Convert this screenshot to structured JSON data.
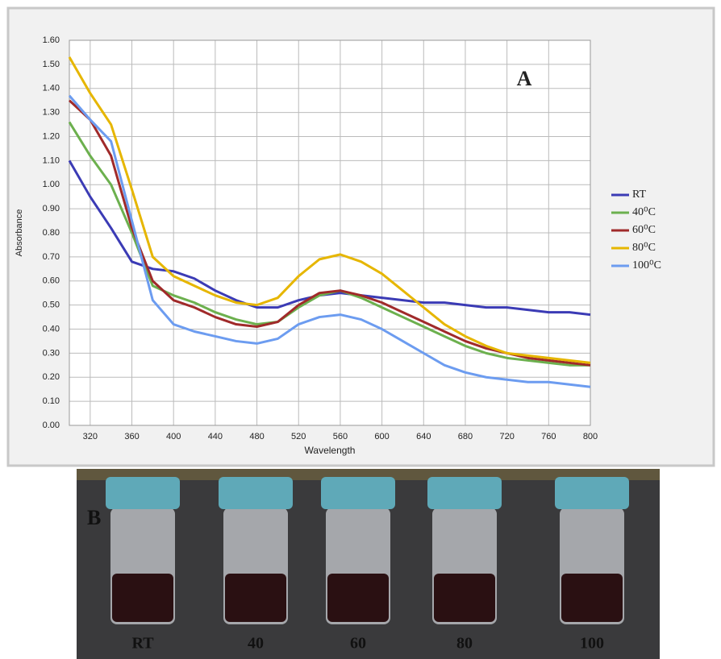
{
  "chart_data": {
    "type": "line",
    "annotation": "A",
    "x_label": "Wavelength",
    "y_label": "Absorbance",
    "x": [
      300,
      320,
      340,
      360,
      380,
      400,
      420,
      440,
      460,
      480,
      500,
      520,
      540,
      560,
      580,
      600,
      620,
      640,
      660,
      680,
      700,
      720,
      740,
      760,
      780,
      800
    ],
    "series": [
      {
        "name": "RT",
        "color": "#3b3bb5",
        "values": [
          1.1,
          0.95,
          0.82,
          0.68,
          0.65,
          0.64,
          0.61,
          0.56,
          0.52,
          0.49,
          0.49,
          0.52,
          0.54,
          0.55,
          0.54,
          0.53,
          0.52,
          0.51,
          0.51,
          0.5,
          0.49,
          0.49,
          0.48,
          0.47,
          0.47,
          0.46
        ]
      },
      {
        "name": "40⁰C",
        "color": "#6cb04e",
        "values": [
          1.26,
          1.12,
          1.0,
          0.8,
          0.58,
          0.54,
          0.51,
          0.47,
          0.44,
          0.42,
          0.43,
          0.49,
          0.54,
          0.56,
          0.53,
          0.49,
          0.45,
          0.41,
          0.37,
          0.33,
          0.3,
          0.28,
          0.27,
          0.26,
          0.25,
          0.25
        ]
      },
      {
        "name": "60⁰C",
        "color": "#a02a2a",
        "values": [
          1.35,
          1.27,
          1.12,
          0.82,
          0.6,
          0.52,
          0.49,
          0.45,
          0.42,
          0.41,
          0.43,
          0.5,
          0.55,
          0.56,
          0.54,
          0.51,
          0.47,
          0.43,
          0.39,
          0.35,
          0.32,
          0.3,
          0.28,
          0.27,
          0.26,
          0.25
        ]
      },
      {
        "name": "80⁰C",
        "color": "#e6b600",
        "values": [
          1.53,
          1.38,
          1.25,
          0.98,
          0.7,
          0.62,
          0.58,
          0.54,
          0.51,
          0.5,
          0.53,
          0.62,
          0.69,
          0.71,
          0.68,
          0.63,
          0.56,
          0.49,
          0.42,
          0.37,
          0.33,
          0.3,
          0.29,
          0.28,
          0.27,
          0.26
        ]
      },
      {
        "name": "100⁰C",
        "color": "#6c9cf0",
        "values": [
          1.37,
          1.27,
          1.18,
          0.85,
          0.52,
          0.42,
          0.39,
          0.37,
          0.35,
          0.34,
          0.36,
          0.42,
          0.45,
          0.46,
          0.44,
          0.4,
          0.35,
          0.3,
          0.25,
          0.22,
          0.2,
          0.19,
          0.18,
          0.18,
          0.17,
          0.16
        ]
      }
    ],
    "xlim": [
      300,
      800
    ],
    "xticks": [
      320,
      360,
      400,
      440,
      480,
      520,
      560,
      600,
      640,
      680,
      720,
      760,
      800
    ],
    "ylim": [
      0,
      1.6
    ],
    "yticks": [
      {
        "value": 0,
        "label": "0.00"
      },
      {
        "value": 0.1,
        "label": "0.10"
      },
      {
        "value": 0.2,
        "label": "0.20"
      },
      {
        "value": 0.3,
        "label": "0.30"
      },
      {
        "value": 0.4,
        "label": "0.40"
      },
      {
        "value": 0.5,
        "label": "0.50"
      },
      {
        "value": 0.6,
        "label": "0.60"
      },
      {
        "value": 0.7,
        "label": "0.70"
      },
      {
        "value": 0.8,
        "label": "0.80"
      },
      {
        "value": 0.9,
        "label": "0.90"
      },
      {
        "value": 1.0,
        "label": "1.00"
      },
      {
        "value": 1.1,
        "label": "1.10"
      },
      {
        "value": 1.2,
        "label": "1.20"
      },
      {
        "value": 1.3,
        "label": "1.30"
      },
      {
        "value": 1.4,
        "label": "1.40"
      },
      {
        "value": 1.5,
        "label": "1.50"
      },
      {
        "value": 1.6,
        "label": "1.60"
      }
    ],
    "grid": true,
    "legend": "right"
  },
  "photo": {
    "panel_label": "B",
    "labels": [
      "RT",
      "40",
      "60",
      "80",
      "100"
    ]
  }
}
